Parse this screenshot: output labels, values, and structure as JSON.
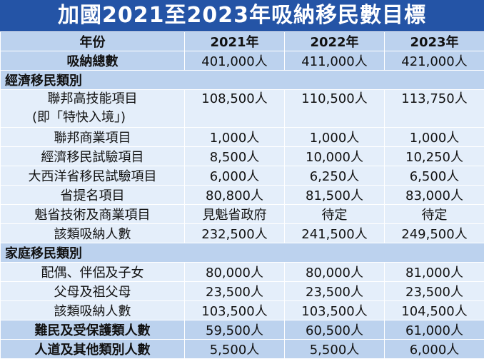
{
  "title": "加國2021至2023年吸納移民數目標",
  "header": {
    "label": "年份",
    "years": [
      "2021年",
      "2022年",
      "2023年"
    ]
  },
  "total": {
    "label": "吸納總數",
    "values": [
      "401,000人",
      "411,000人",
      "421,000人"
    ]
  },
  "economic": {
    "heading": "經濟移民類別",
    "rows": [
      {
        "label": "聯邦高技能項目",
        "label2": "(即「特快入境」)",
        "values": [
          "108,500人",
          "110,500人",
          "113,750人"
        ]
      },
      {
        "label": "聯邦商業項目",
        "values": [
          "1,000人",
          "1,000人",
          "1,000人"
        ]
      },
      {
        "label": "經濟移民試驗項目",
        "values": [
          "8,500人",
          "10,000人",
          "10,250人"
        ]
      },
      {
        "label": "大西洋省移民試驗項目",
        "values": [
          "6,000人",
          "6,250人",
          "6,500人"
        ]
      },
      {
        "label": "省提名項目",
        "values": [
          "80,800人",
          "81,500人",
          "83,000人"
        ]
      },
      {
        "label": "魁省技術及商業項目",
        "values": [
          "見魁省政府",
          "待定",
          "待定"
        ]
      },
      {
        "label": "該類吸納人數",
        "values": [
          "232,500人",
          "241,500人",
          "249,500人"
        ]
      }
    ]
  },
  "family": {
    "heading": "家庭移民類別",
    "rows": [
      {
        "label": "配偶、伴侶及子女",
        "values": [
          "80,000人",
          "80,000人",
          "81,000人"
        ]
      },
      {
        "label": "父母及祖父母",
        "values": [
          "23,500人",
          "23,500人",
          "23,500人"
        ]
      },
      {
        "label": "該類吸納人數",
        "values": [
          "103,500人",
          "103,500人",
          "104,500人"
        ]
      }
    ]
  },
  "refugee": {
    "label": "難民及受保護類人數",
    "values": [
      "59,500人",
      "60,500人",
      "61,000人"
    ]
  },
  "humanitarian": {
    "label": "人道及其他類別人數",
    "values": [
      "5,500人",
      "5,500人",
      "6,000人"
    ]
  },
  "colors": {
    "title_bg": "#2454a6",
    "dark_row": "#bcd2ee",
    "light_row": "#e4eefa"
  }
}
